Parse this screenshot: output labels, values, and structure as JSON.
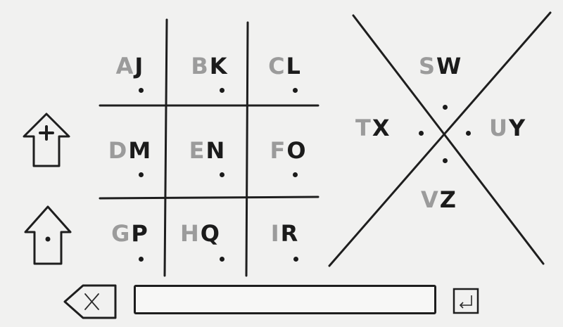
{
  "grid": {
    "cells": [
      {
        "gray": "A",
        "dark": "J"
      },
      {
        "gray": "B",
        "dark": "K"
      },
      {
        "gray": "C",
        "dark": "L"
      },
      {
        "gray": "D",
        "dark": "M"
      },
      {
        "gray": "E",
        "dark": "N"
      },
      {
        "gray": "F",
        "dark": "O"
      },
      {
        "gray": "G",
        "dark": "P"
      },
      {
        "gray": "H",
        "dark": "Q"
      },
      {
        "gray": "I",
        "dark": "R"
      }
    ]
  },
  "x_cipher": {
    "top": {
      "gray": "S",
      "dark": "W"
    },
    "left": {
      "gray": "T",
      "dark": "X"
    },
    "right": {
      "gray": "U",
      "dark": "Y"
    },
    "bottom": {
      "gray": "V",
      "dark": "Z"
    }
  },
  "icons": {
    "shift_plus": "up-arrow-plus-icon",
    "shift_dot": "up-arrow-dot-icon",
    "backspace": "backspace-icon",
    "enter": "enter-icon"
  },
  "input": {
    "value": ""
  },
  "colors": {
    "ink": "#1b1b1b",
    "gray_ink": "#9b9b9b",
    "paper": "#f1f1f0"
  }
}
